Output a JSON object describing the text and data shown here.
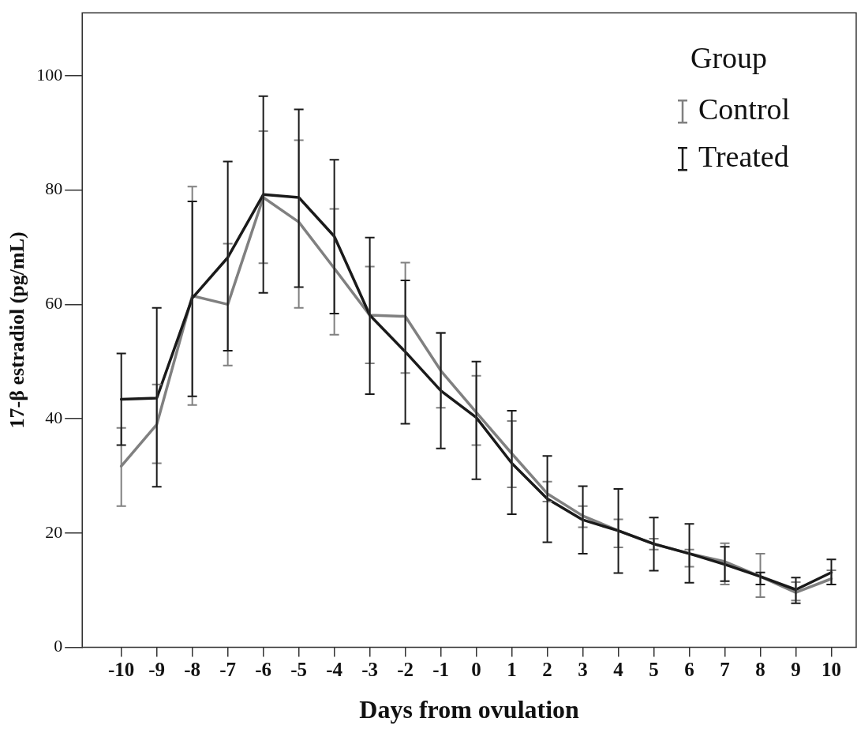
{
  "chart_data": {
    "type": "line",
    "xlabel": "Days from ovulation",
    "ylabel": "17-β estradiol (pg/mL)",
    "legend_title": "Group",
    "x": [
      -10,
      -9,
      -8,
      -7,
      -6,
      -5,
      -4,
      -3,
      -2,
      -1,
      0,
      1,
      2,
      3,
      4,
      5,
      6,
      7,
      8,
      9,
      10
    ],
    "xlim": [
      -11.1,
      10.7
    ],
    "xticks": [
      -10,
      -9,
      -8,
      -7,
      -6,
      -5,
      -4,
      -3,
      -2,
      -1,
      0,
      1,
      2,
      3,
      4,
      5,
      6,
      7,
      8,
      9,
      10
    ],
    "ylim": [
      0,
      111
    ],
    "yticks": [
      0,
      20,
      40,
      60,
      80,
      100
    ],
    "grid": false,
    "legend": "top right",
    "marker": "none",
    "line_style": "solid",
    "series": [
      {
        "name": "Control",
        "color": "#808080",
        "values": [
          31.7,
          39,
          61.5,
          60,
          78.7,
          74.4,
          66.3,
          58.1,
          57.9,
          48.4,
          41.1,
          33.9,
          26.9,
          23,
          20.4,
          18.1,
          16.4,
          15,
          12.4,
          9.6,
          12
        ],
        "errors": [
          [
            24.7,
            38.4
          ],
          [
            32.2,
            46
          ],
          [
            42.4,
            80.6
          ],
          [
            49.3,
            70.6
          ],
          [
            67.2,
            90.3
          ],
          [
            59.4,
            88.7
          ],
          [
            54.7,
            76.7
          ],
          [
            49.7,
            66.6
          ],
          [
            48,
            67.3
          ],
          [
            41.9,
            55
          ],
          [
            35.4,
            47.5
          ],
          [
            28,
            39.6
          ],
          [
            25.5,
            29
          ],
          [
            21,
            24.7
          ],
          [
            17.5,
            22.4
          ],
          [
            17.1,
            19
          ],
          [
            14.1,
            17.1
          ],
          [
            11,
            18.2
          ],
          [
            8.8,
            16.4
          ],
          [
            8.2,
            11.4
          ],
          [
            11,
            13.5
          ]
        ]
      },
      {
        "name": "Treated",
        "color": "#1a1a1a",
        "values": [
          43.4,
          43.6,
          61.1,
          68.2,
          79.2,
          78.7,
          71.9,
          58.1,
          51.7,
          44.9,
          40.2,
          32.2,
          26,
          22.3,
          20.4,
          18.1,
          16.4,
          14.5,
          12.4,
          10.1,
          13.1
        ],
        "errors": [
          [
            35.4,
            51.4
          ],
          [
            28.1,
            59.4
          ],
          [
            43.9,
            78
          ],
          [
            51.9,
            85
          ],
          [
            62,
            96.4
          ],
          [
            63,
            94.1
          ],
          [
            58.4,
            85.3
          ],
          [
            44.3,
            71.7
          ],
          [
            39.1,
            64.2
          ],
          [
            34.8,
            55
          ],
          [
            29.4,
            50
          ],
          [
            23.3,
            41.4
          ],
          [
            18.4,
            33.5
          ],
          [
            16.4,
            28.2
          ],
          [
            13,
            27.7
          ],
          [
            13.4,
            22.7
          ],
          [
            11.3,
            21.6
          ],
          [
            11.6,
            17.6
          ],
          [
            11,
            13.1
          ],
          [
            7.7,
            12.2
          ],
          [
            11,
            15.4
          ]
        ]
      }
    ]
  }
}
